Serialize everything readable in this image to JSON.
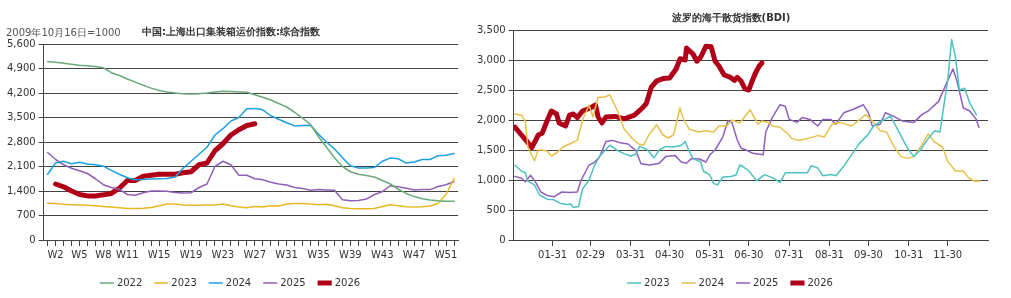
{
  "chart_data": [
    {
      "type": "line",
      "title": "中国:上海出口集装箱运价指数:综合指数",
      "ylabel": "2009年10月16日=1000",
      "legend": "bottom",
      "grid": "y",
      "marker": "none",
      "categories": [
        null,
        "W2",
        null,
        null,
        "W5",
        null,
        null,
        "W8",
        null,
        null,
        "W11",
        null,
        null,
        null,
        "W15",
        null,
        null,
        null,
        "W19",
        null,
        null,
        null,
        "W23",
        null,
        null,
        null,
        "W27",
        null,
        null,
        null,
        "W31",
        null,
        null,
        null,
        "W35",
        null,
        null,
        null,
        "W39",
        null,
        null,
        null,
        "W43",
        null,
        null,
        null,
        "W47",
        null,
        null,
        null,
        "W51",
        null
      ],
      "ylim": [
        0,
        5600
      ],
      "yticks": [
        0,
        {
          "value": 700,
          "label": "700"
        },
        {
          "value": 1400,
          "label": "1,400"
        },
        {
          "value": 2100,
          "label": "2,100"
        },
        {
          "value": 2800,
          "label": "2,800"
        },
        {
          "value": 3500,
          "label": "3,500"
        },
        {
          "value": 4200,
          "label": "4,200"
        },
        {
          "value": 4900,
          "label": "4,900"
        },
        {
          "value": 5600,
          "label": "5,600"
        }
      ],
      "series": [
        {
          "name": "2022",
          "color": "#6aaa78",
          "values": [
            5100,
            5080,
            5050,
            5020,
            4990,
            4980,
            4960,
            4920,
            4780,
            4700,
            4600,
            4510,
            4420,
            4340,
            4270,
            4230,
            4200,
            4180,
            4170,
            4180,
            4200,
            4230,
            4250,
            4240,
            4230,
            4220,
            4150,
            4080,
            4000,
            3900,
            3800,
            3650,
            3480,
            3300,
            2950,
            2650,
            2350,
            2100,
            1950,
            1880,
            1840,
            1800,
            1700,
            1600,
            1450,
            1330,
            1240,
            1180,
            1140,
            1120,
            1110,
            1110
          ]
        },
        {
          "name": "2023",
          "color": "#e8b820",
          "values": [
            1050,
            1040,
            1020,
            1010,
            1000,
            990,
            980,
            960,
            940,
            920,
            900,
            900,
            910,
            930,
            980,
            1030,
            1030,
            1000,
            990,
            990,
            1000,
            1000,
            1030,
            980,
            940,
            920,
            960,
            940,
            980,
            970,
            1030,
            1040,
            1040,
            1030,
            1010,
            1020,
            980,
            920,
            900,
            895,
            890,
            900,
            960,
            1010,
            980,
            950,
            940,
            950,
            970,
            1050,
            1300,
            1750
          ]
        },
        {
          "name": "2024",
          "color": "#1aa0e0",
          "values": [
            1880,
            2200,
            2250,
            2180,
            2220,
            2170,
            2150,
            2110,
            1990,
            1880,
            1780,
            1720,
            1730,
            1740,
            1750,
            1760,
            1800,
            2050,
            2250,
            2450,
            2650,
            3000,
            3180,
            3400,
            3500,
            3750,
            3760,
            3720,
            3550,
            3450,
            3350,
            3260,
            3270,
            3280,
            3020,
            2800,
            2600,
            2350,
            2120,
            2060,
            2060,
            2070,
            2250,
            2340,
            2320,
            2200,
            2230,
            2300,
            2300,
            2410,
            2420,
            2470
          ]
        },
        {
          "name": "2025",
          "color": "#9060b8",
          "values": [
            2500,
            2300,
            2150,
            2050,
            1980,
            1900,
            1750,
            1580,
            1500,
            1450,
            1300,
            1280,
            1350,
            1400,
            1400,
            1390,
            1360,
            1340,
            1350,
            1500,
            1600,
            2100,
            2250,
            2150,
            1850,
            1850,
            1750,
            1720,
            1650,
            1600,
            1570,
            1500,
            1470,
            1420,
            1440,
            1430,
            1420,
            1150,
            1120,
            1130,
            1170,
            1300,
            1380,
            1550,
            1520,
            1480,
            1430,
            1440,
            1440,
            1530,
            1580,
            1670
          ]
        },
        {
          "name": "2026",
          "color": "#b00018",
          "values": [
            null,
            1600,
            1520,
            1400,
            1300,
            1260,
            1260,
            1290,
            1330,
            1480,
            1700,
            1700,
            1820,
            1850,
            1880,
            1880,
            1880,
            1920,
            1950,
            2150,
            2200,
            2550,
            2750,
            3000,
            3150,
            3270,
            3320,
            null,
            null,
            null,
            null,
            null,
            null,
            null,
            null,
            null,
            null,
            null,
            null,
            null,
            null,
            null,
            null,
            null,
            null,
            null,
            null,
            null,
            null,
            null,
            null,
            null
          ]
        }
      ]
    },
    {
      "type": "line",
      "title": "波罗的海干散货指数(BDI)",
      "legend": "bottom",
      "grid": "y",
      "marker": "none",
      "xlim": [
        "--01-01",
        "--12-31"
      ],
      "xticks": [
        {
          "value": "--01-31",
          "label": "01-31"
        },
        {
          "value": "--02-29",
          "label": "02-29"
        },
        {
          "value": "--03-31",
          "label": "03-31"
        },
        {
          "value": "--04-30",
          "label": "04-30"
        },
        {
          "value": "--05-31",
          "label": "05-31"
        },
        {
          "value": "--06-30",
          "label": "06-30"
        },
        {
          "value": "--07-31",
          "label": "07-31"
        },
        {
          "value": "--08-31",
          "label": "08-31"
        },
        {
          "value": "--09-30",
          "label": "09-30"
        },
        {
          "value": "--10-31",
          "label": "10-31"
        },
        {
          "value": "--11-30",
          "label": "11-30"
        }
      ],
      "ylim": [
        0,
        3500
      ],
      "yticks": [
        0,
        {
          "value": 500,
          "label": "500"
        },
        {
          "value": 1000,
          "label": "1,000"
        },
        {
          "value": 1500,
          "label": "1,500"
        },
        {
          "value": 2000,
          "label": "2,000"
        },
        {
          "value": 2500,
          "label": "2,500"
        },
        {
          "value": 3000,
          "label": "3,000"
        },
        {
          "value": 3500,
          "label": "3,500"
        }
      ],
      "series": [
        {
          "name": "2023",
          "color": "#4fc1c1",
          "x": [
            "--01-02",
            "--01-07",
            "--01-10",
            "--01-12",
            "--01-17",
            "--01-21",
            "--01-27",
            "--02-01",
            "--02-06",
            "--02-11",
            "--02-14",
            "--02-16",
            "--02-20",
            "--02-23",
            "--02-28",
            "--03-03",
            "--03-07",
            "--03-15",
            "--03-21",
            "--03-26",
            "--03-31",
            "--04-04",
            "--04-07",
            "--04-13",
            "--04-18",
            "--04-22",
            "--04-27",
            "--05-03",
            "--05-09",
            "--05-12",
            "--05-15",
            "--05-18",
            "--05-24",
            "--05-26",
            "--05-31",
            "--06-03",
            "--06-06",
            "--06-10",
            "--06-16",
            "--06-20",
            "--06-23",
            "--06-25",
            "--06-30",
            "--07-06",
            "--07-12",
            "--07-18",
            "--07-24",
            "--07-28",
            "--08-04",
            "--08-14",
            "--08-17",
            "--08-22",
            "--08-26",
            "--09-01",
            "--09-05",
            "--09-11",
            "--09-17",
            "--09-23",
            "--09-29",
            "--10-04",
            "--10-10",
            "--10-17",
            "--10-25",
            "--10-30",
            "--11-04",
            "--11-10",
            "--11-15",
            "--11-20",
            "--11-24",
            "--11-30",
            "--12-03",
            "--12-06",
            "--12-09",
            "--12-13",
            "--12-17",
            "--12-22"
          ],
          "values": [
            1245,
            1150,
            1120,
            980,
            920,
            750,
            680,
            670,
            610,
            590,
            600,
            540,
            560,
            850,
            1000,
            1230,
            1390,
            1580,
            1490,
            1440,
            1400,
            1430,
            1560,
            1500,
            1370,
            1500,
            1560,
            1550,
            1580,
            1640,
            1480,
            1360,
            1300,
            1150,
            1080,
            940,
            920,
            1050,
            1060,
            1080,
            1250,
            1230,
            1150,
            985,
            1090,
            1040,
            960,
            1120,
            1120,
            1120,
            1240,
            1200,
            1070,
            1090,
            1070,
            1230,
            1420,
            1610,
            1740,
            1900,
            1985,
            2065,
            1740,
            1530,
            1390,
            1530,
            1690,
            1820,
            1800,
            2660,
            3340,
            3040,
            2500,
            2530,
            2280,
            2090
          ]
        },
        {
          "name": "2024",
          "color": "#e8c14a",
          "x": [
            "--01-02",
            "--01-07",
            "--01-10",
            "--01-12",
            "--01-17",
            "--01-20",
            "--01-23",
            "--01-27",
            "--01-30",
            "--02-03",
            "--02-08",
            "--02-13",
            "--02-19",
            "--02-23",
            "--02-28",
            "--03-02",
            "--03-06",
            "--03-11",
            "--03-15",
            "--03-21",
            "--03-26",
            "--04-01",
            "--04-06",
            "--04-10",
            "--04-14",
            "--04-20",
            "--04-25",
            "--04-29",
            "--05-03",
            "--05-08",
            "--05-10",
            "--05-15",
            "--05-22",
            "--05-28",
            "--06-03",
            "--06-07",
            "--06-13",
            "--06-17",
            "--06-23",
            "--07-01",
            "--07-07",
            "--07-10",
            "--07-15",
            "--07-18",
            "--07-24",
            "--07-30",
            "--08-02",
            "--08-07",
            "--08-14",
            "--08-22",
            "--08-27",
            "--09-02",
            "--09-08",
            "--09-17",
            "--09-22",
            "--09-28",
            "--10-03",
            "--10-09",
            "--10-14",
            "--10-19",
            "--10-25",
            "--10-30",
            "--11-04",
            "--11-10",
            "--11-15",
            "--11-20",
            "--11-26",
            "--11-30",
            "--12-06",
            "--12-12",
            "--12-16",
            "--12-20",
            "--12-25"
          ],
          "values": [
            2100,
            2080,
            1980,
            1550,
            1320,
            1500,
            1500,
            1480,
            1400,
            1450,
            1550,
            1600,
            1660,
            2000,
            2250,
            2050,
            2380,
            2380,
            2420,
            2150,
            1850,
            1700,
            1600,
            1580,
            1750,
            1920,
            1750,
            1700,
            1750,
            2200,
            2050,
            1850,
            1800,
            1820,
            1800,
            1900,
            1900,
            2000,
            1950,
            2170,
            1930,
            1985,
            1960,
            1900,
            1880,
            1770,
            1690,
            1660,
            1690,
            1740,
            1715,
            1930,
            1960,
            1900,
            1985,
            2090,
            1985,
            1820,
            1800,
            1580,
            1390,
            1360,
            1390,
            1580,
            1770,
            1630,
            1550,
            1310,
            1150,
            1150,
            1040,
            985,
            985
          ]
        },
        {
          "name": "2025",
          "color": "#8e5fbf",
          "x": [
            "--01-02",
            "--01-07",
            "--01-10",
            "--01-14",
            "--01-18",
            "--01-22",
            "--01-27",
            "--02-01",
            "--02-07",
            "--02-13",
            "--02-19",
            "--02-22",
            "--02-28",
            "--03-03",
            "--03-07",
            "--03-12",
            "--03-17",
            "--03-23",
            "--03-29",
            "--04-04",
            "--04-08",
            "--04-15",
            "--04-22",
            "--04-27",
            "--05-04",
            "--05-09",
            "--05-13",
            "--05-17",
            "--05-23",
            "--05-28",
            "--05-31",
            "--06-04",
            "--06-10",
            "--06-14",
            "--06-17",
            "--06-21",
            "--06-24",
            "--06-28",
            "--07-03",
            "--07-11",
            "--07-13",
            "--07-18",
            "--07-24",
            "--07-28",
            "--07-31",
            "--08-06",
            "--08-10",
            "--08-16",
            "--08-22",
            "--08-26",
            "--09-01",
            "--09-05",
            "--09-11",
            "--09-18",
            "--09-26",
            "--09-30",
            "--10-03",
            "--10-09",
            "--10-13",
            "--10-19",
            "--10-26",
            "--11-04",
            "--11-10",
            "--11-15",
            "--11-23",
            "--11-29",
            "--12-04",
            "--12-07",
            "--12-12",
            "--12-17",
            "--12-22",
            "--12-24"
          ],
          "values": [
            1060,
            1030,
            970,
            1080,
            960,
            800,
            740,
            720,
            800,
            790,
            800,
            1000,
            1250,
            1290,
            1380,
            1640,
            1660,
            1620,
            1600,
            1490,
            1270,
            1250,
            1280,
            1390,
            1410,
            1300,
            1280,
            1360,
            1350,
            1300,
            1420,
            1500,
            1720,
            1990,
            1960,
            1670,
            1530,
            1500,
            1445,
            1420,
            1800,
            2040,
            2255,
            2230,
            2010,
            1960,
            2040,
            2010,
            1900,
            2010,
            2010,
            1930,
            2120,
            2175,
            2255,
            2120,
            1900,
            1930,
            2120,
            2065,
            1985,
            1960,
            2090,
            2150,
            2310,
            2610,
            2850,
            2660,
            2200,
            2150,
            2010,
            1880
          ]
        },
        {
          "name": "2026",
          "color": "#b00018",
          "x": [
            "--01-02",
            "--01-07",
            "--01-11",
            "--01-15",
            "--01-20",
            "--01-23",
            "--01-27",
            "--01-30",
            "--02-03",
            "--02-05",
            "--02-10",
            "--02-13",
            "--02-16",
            "--02-19",
            "--02-23",
            "--02-29",
            "--03-04",
            "--03-06",
            "--03-09",
            "--03-12",
            "--03-19",
            "--03-26",
            "--04-03",
            "--04-09",
            "--04-12",
            "--04-16",
            "--04-20",
            "--04-25",
            "--04-30",
            "--05-05",
            "--05-08",
            "--05-12",
            "--05-13",
            "--05-18",
            "--05-21",
            "--05-24",
            "--05-28",
            "--06-01",
            "--06-04",
            "--06-07",
            "--06-11",
            "--06-15",
            "--06-19",
            "--06-21",
            "--06-24",
            "--06-27",
            "--06-30",
            "--07-02",
            "--07-05",
            "--07-08",
            "--07-10"
          ],
          "values": [
            1880,
            1750,
            1650,
            1540,
            1750,
            1780,
            2000,
            2150,
            2100,
            1950,
            1900,
            2080,
            2100,
            2040,
            2150,
            2200,
            2250,
            2050,
            1950,
            2050,
            2060,
            2020,
            2080,
            2200,
            2270,
            2550,
            2650,
            2690,
            2700,
            2850,
            3020,
            3000,
            3200,
            3100,
            2980,
            3050,
            3230,
            3220,
            2980,
            2900,
            2750,
            2720,
            2660,
            2710,
            2650,
            2520,
            2500,
            2620,
            2780,
            2900,
            2950
          ]
        }
      ]
    }
  ]
}
